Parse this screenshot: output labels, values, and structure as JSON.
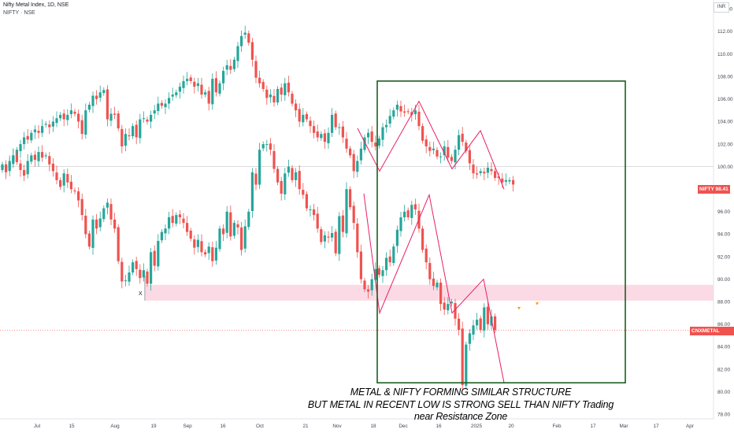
{
  "header": {
    "title": "Nifty Metal Index, 1D, NSE",
    "compare": "NIFTY · NSE",
    "currency": "INR"
  },
  "annotation": {
    "line1": "METAL & NIFTY FORMING SIMILAR STRUCTURE",
    "line2": "BUT METAL IN RECENT LOW IS STRONG SELL THAN NIFTY Trading near Resistance Zone",
    "x_marker": "X"
  },
  "colors": {
    "up": "#26a69a",
    "down": "#ef5350",
    "box": "#1b5e20",
    "zone": "#f8bbd0",
    "marker": "#ff9800"
  },
  "chart_data": {
    "type": "candlestick",
    "yaxis": {
      "ylim": [
        77.6,
        114.8
      ],
      "ticks": [
        78,
        80,
        82,
        84,
        86,
        88,
        90,
        92,
        94,
        96,
        98,
        100,
        102,
        104,
        106,
        108,
        110,
        112,
        114
      ],
      "tick_labels": [
        "78.00",
        "80.00",
        "82.00",
        "84.00",
        "86.00",
        "88.00",
        "90.00",
        "92.00",
        "94.00",
        "96.00",
        "98.00",
        "100.00",
        "102.00",
        "104.00",
        "106.00",
        "108.00",
        "110.00",
        "112.00",
        "114.00"
      ]
    },
    "xaxis": {
      "labels": [
        "Jul",
        "15",
        "Aug",
        "19",
        "Sep",
        "16",
        "Oct",
        "21",
        "Nov",
        "18",
        "Dec",
        "16",
        "2025",
        "20",
        "Feb",
        "17",
        "Mar",
        "17",
        "Apr"
      ]
    },
    "last_values": {
      "nifty": {
        "label": "NIFTY",
        "value": "98.41"
      },
      "metal": {
        "label": "CNXMETAL",
        "value": "85.48"
      }
    },
    "baseline": 100,
    "resistance_zone": [
      88.1,
      89.5
    ],
    "series": [
      {
        "name": "NIFTY",
        "closes": [
          100.2,
          99.8,
          100.5,
          101.0,
          101.5,
          102.0,
          102.6,
          102.4,
          103.0,
          103.3,
          103.0,
          103.6,
          103.8,
          103.5,
          104.0,
          104.3,
          104.6,
          104.2,
          104.6,
          105.0,
          104.7,
          104.0,
          102.9,
          105.0,
          105.5,
          106.3,
          106.0,
          106.6,
          106.8,
          104.2,
          104.7,
          104.6,
          103.4,
          101.8,
          102.9,
          102.7,
          103.6,
          102.6,
          104.2,
          104.3,
          104.0,
          104.6,
          105.0,
          105.6,
          105.4,
          105.6,
          106.1,
          106.4,
          106.6,
          107.1,
          107.6,
          107.8,
          107.6,
          107.1,
          107.4,
          106.4,
          106.6,
          105.6,
          107.8,
          106.6,
          107.4,
          108.5,
          109.0,
          108.6,
          109.5,
          110.7,
          111.6,
          111.9,
          111.0,
          109.5,
          107.9,
          107.4,
          106.9,
          106.1,
          106.4,
          105.7,
          106.9,
          106.4,
          107.4,
          106.6,
          105.6,
          105.0,
          104.0,
          104.6,
          104.2,
          103.6,
          103.0,
          102.6,
          102.9,
          102.2,
          103.0,
          104.6,
          103.5,
          103.5,
          102.6,
          101.6,
          101.0,
          99.6,
          100.5,
          101.6,
          102.6,
          103.0,
          102.2,
          101.8,
          102.5,
          103.5,
          103.7,
          104.5,
          105.0,
          105.5,
          104.9,
          104.8,
          104.9,
          104.6,
          105.0,
          103.6,
          102.3,
          101.8,
          101.4,
          101.6,
          100.9,
          100.9,
          101.8,
          100.8,
          100.5,
          101.5,
          102.8,
          102.2,
          101.4,
          100.3,
          99.4,
          99.3,
          99.6,
          99.4,
          99.9,
          99.6,
          99.0,
          99.0,
          98.6,
          98.8,
          98.8,
          98.41
        ]
      },
      {
        "name": "CNXMETAL",
        "closes": [
          100.0,
          99.5,
          100.3,
          101.0,
          100.4,
          99.7,
          99.2,
          100.5,
          101.0,
          100.6,
          101.3,
          100.8,
          101.0,
          100.2,
          99.6,
          98.8,
          98.2,
          99.4,
          98.6,
          98.0,
          97.8,
          97.0,
          95.7,
          94.0,
          92.9,
          95.3,
          94.5,
          95.4,
          96.3,
          96.8,
          95.3,
          94.5,
          91.6,
          89.8,
          89.9,
          90.6,
          91.5,
          90.9,
          90.1,
          90.8,
          89.6,
          92.4,
          91.2,
          93.4,
          94.2,
          94.5,
          95.5,
          95.0,
          95.7,
          95.5,
          95.0,
          94.2,
          93.6,
          92.8,
          93.5,
          92.4,
          92.2,
          92.9,
          91.6,
          92.8,
          94.5,
          94.0,
          96.0,
          93.8,
          95.0,
          94.6,
          92.6,
          94.7,
          96.0,
          99.5,
          98.4,
          101.5,
          102.0,
          102.0,
          101.5,
          99.8,
          98.6,
          97.6,
          99.4,
          100.0,
          98.8,
          99.5,
          98.0,
          97.5,
          96.3,
          96.2,
          95.7,
          94.5,
          93.3,
          93.9,
          93.7,
          94.1,
          92.3,
          95.6,
          94.2,
          98.0,
          96.4,
          95.0,
          92.4,
          90.0,
          89.1,
          88.9,
          90.0,
          90.9,
          90.4,
          90.8,
          91.9,
          91.5,
          92.9,
          94.4,
          95.5,
          96.0,
          95.5,
          96.6,
          96.2,
          94.5,
          92.6,
          91.5,
          90.0,
          89.4,
          89.7,
          87.8,
          87.3,
          87.8,
          88.0,
          86.5,
          85.5,
          80.6,
          84.2,
          85.2,
          85.9,
          86.4,
          85.5,
          87.5,
          86.0,
          86.7,
          85.48
        ]
      }
    ],
    "annotations": {
      "structure_box": {
        "x_range": [
          "Nov 18",
          "Feb 17"
        ],
        "y_range": [
          80.8,
          107.6
        ]
      },
      "nifty_zigzag": [
        99.6,
        105.8,
        99.8,
        103.2,
        98.0
      ],
      "metal_zigzag": [
        87.0,
        97.5,
        87.0,
        90.0,
        80.8
      ]
    }
  }
}
